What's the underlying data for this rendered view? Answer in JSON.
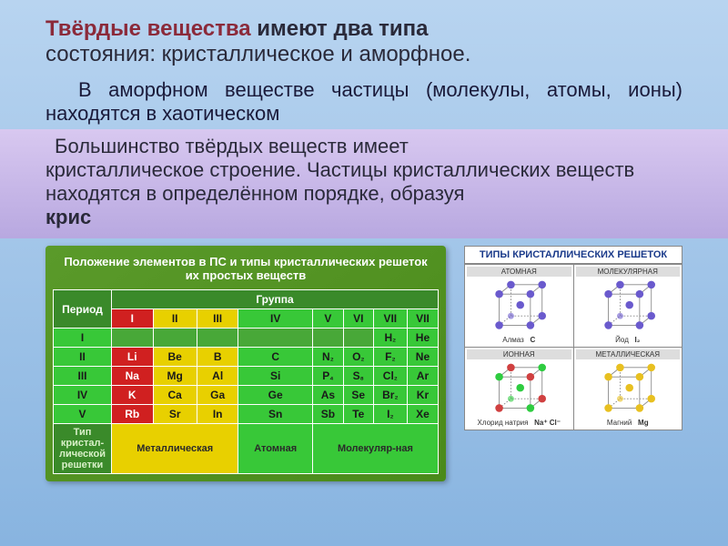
{
  "title": {
    "highlight": "Твёрдые вещества",
    "rest1": " имеют два типа",
    "line2": "состояния: кристаллическое и аморфное."
  },
  "para1": "В аморфном веществе частицы (молекулы, атомы, ионы) находятся в хаотическом",
  "para2a": " Большинство твёрдых веществ имеет",
  "para2b": "кристаллическое строение. Частицы кристаллических веществ находятся в определённом порядке, образуя",
  "para2c": "крис",
  "pt": {
    "title": "Положение элементов в ПС и типы кристаллических решеток их простых веществ",
    "period_hdr": "Период",
    "group_hdr": "Группа",
    "cols": [
      "I",
      "II",
      "III",
      "IV",
      "V",
      "VI",
      "VII",
      "VII"
    ],
    "rows": [
      {
        "n": "I",
        "cells": [
          "",
          "",
          "",
          "",
          "",
          "",
          "H₂",
          "He"
        ]
      },
      {
        "n": "II",
        "cells": [
          "Li",
          "Be",
          "B",
          "C",
          "N₂",
          "O₂",
          "F₂",
          "Ne"
        ]
      },
      {
        "n": "III",
        "cells": [
          "Na",
          "Mg",
          "Al",
          "Si",
          "P₄",
          "S₈",
          "Cl₂",
          "Ar"
        ]
      },
      {
        "n": "IV",
        "cells": [
          "K",
          "Ca",
          "Ga",
          "Ge",
          "As",
          "Se",
          "Br₂",
          "Kr"
        ]
      },
      {
        "n": "V",
        "cells": [
          "Rb",
          "Sr",
          "In",
          "Sn",
          "Sb",
          "Te",
          "I₂",
          "Xe"
        ]
      }
    ],
    "type_lbl": "Тип кристал-лической решетки",
    "type_met": "Металлическая",
    "type_at": "Атомная",
    "type_mol": "Молекуляр-ная"
  },
  "lattice": {
    "title": "ТИПЫ КРИСТАЛЛИЧЕСКИХ РЕШЕТОК",
    "cells": [
      {
        "hdr": "АТОМНАЯ",
        "cap": "Алмаз",
        "formula": "C",
        "color": "#6a5acd"
      },
      {
        "hdr": "МОЛЕКУЛЯРНАЯ",
        "cap": "Йод",
        "formula": "I₂",
        "color": "#6a5acd"
      },
      {
        "hdr": "ИОННАЯ",
        "cap": "Хлорид натрия",
        "formula": "Na⁺ Cl⁻",
        "color": "#2ecc40"
      },
      {
        "hdr": "МЕТАЛЛИЧЕСКАЯ",
        "cap": "Магний",
        "formula": "Mg",
        "color": "#e8c020"
      }
    ]
  },
  "colors": {
    "metal1": "#d02020",
    "metal2": "#e8d000",
    "nonmetal": "#38c838",
    "green_dark": "#3a8a2a",
    "bg_grad": "#5a9a2a"
  }
}
